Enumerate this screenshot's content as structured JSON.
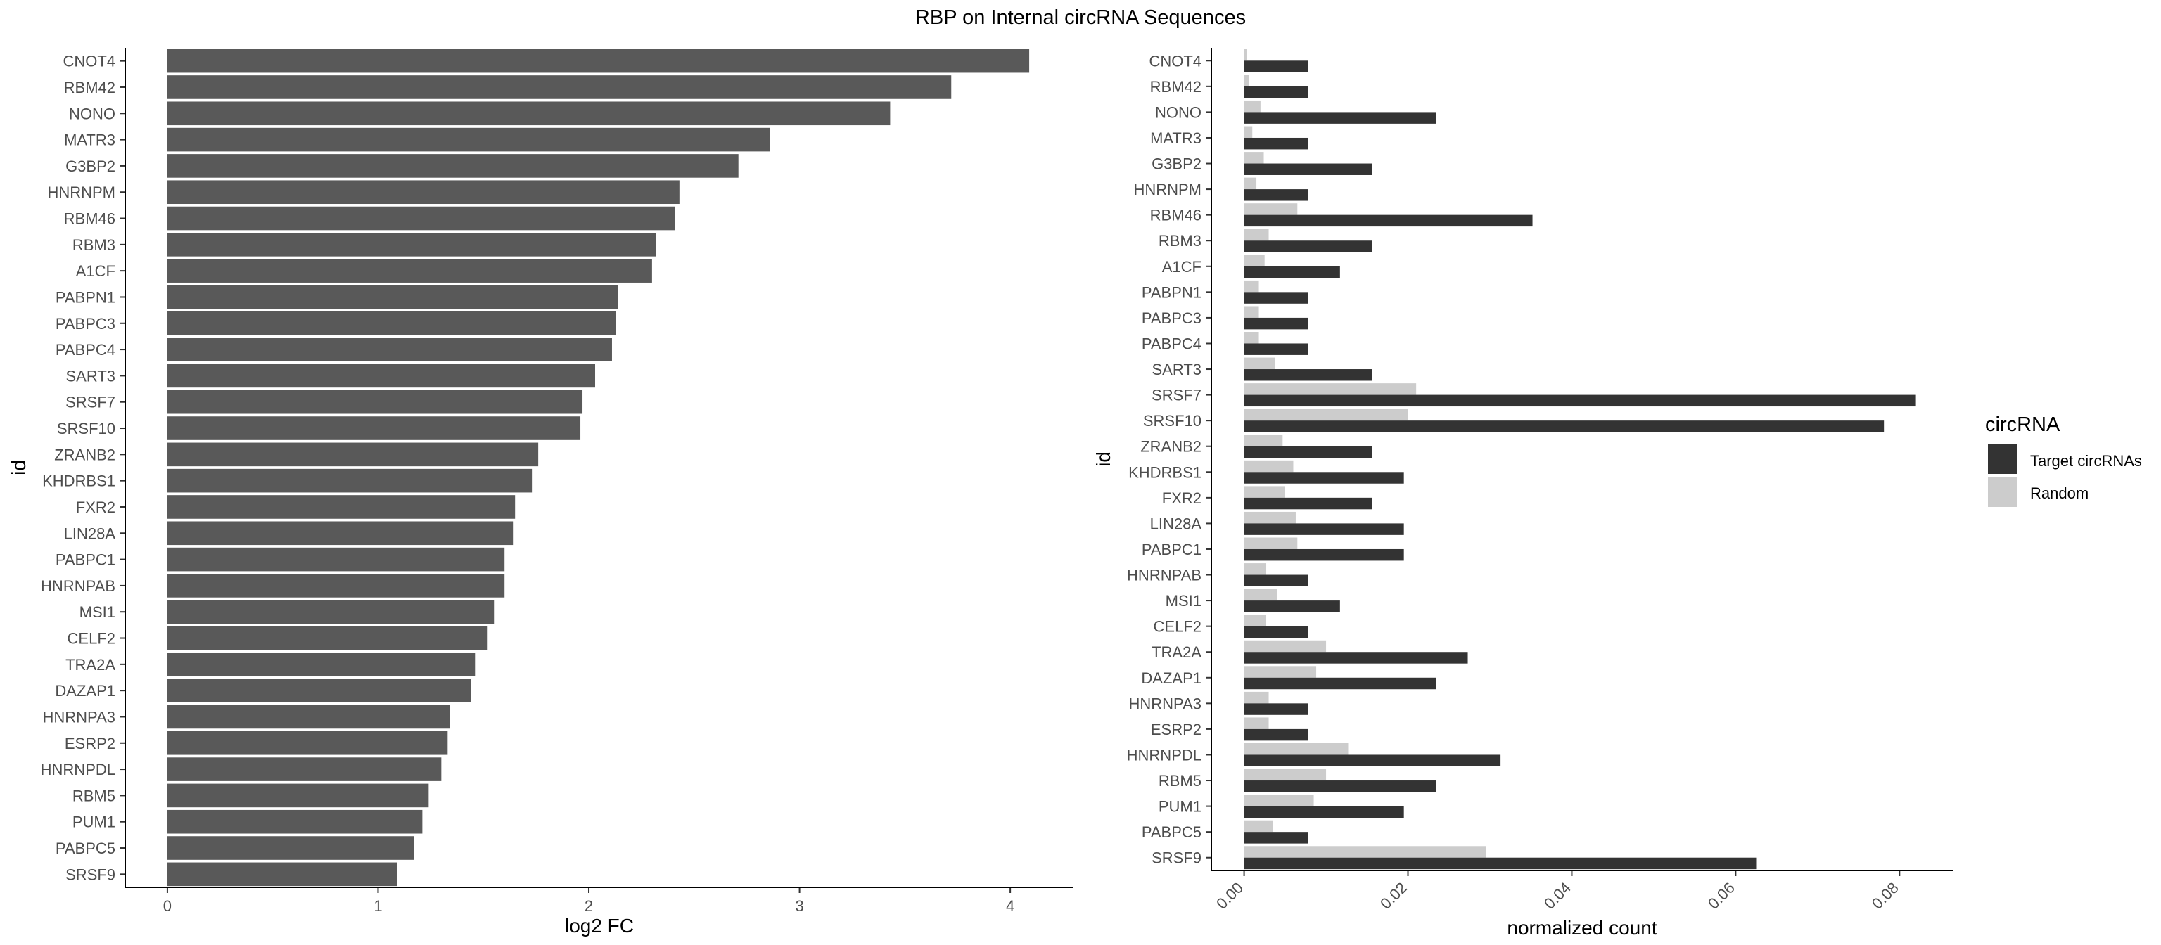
{
  "title": "RBP on Internal circRNA Sequences",
  "chart_data": [
    {
      "type": "bar",
      "orientation": "horizontal",
      "categories": [
        "CNOT4",
        "RBM42",
        "NONO",
        "MATR3",
        "G3BP2",
        "HNRNPM",
        "RBM46",
        "RBM3",
        "A1CF",
        "PABPN1",
        "PABPC3",
        "PABPC4",
        "SART3",
        "SRSF7",
        "SRSF10",
        "ZRANB2",
        "KHDRBS1",
        "FXR2",
        "LIN28A",
        "PABPC1",
        "HNRNPAB",
        "MSI1",
        "CELF2",
        "TRA2A",
        "DAZAP1",
        "HNRNPA3",
        "ESRP2",
        "HNRNPDL",
        "RBM5",
        "PUM1",
        "PABPC5",
        "SRSF9"
      ],
      "values": [
        4.09,
        3.72,
        3.43,
        2.86,
        2.71,
        2.43,
        2.41,
        2.32,
        2.3,
        2.14,
        2.13,
        2.11,
        2.03,
        1.97,
        1.96,
        1.76,
        1.73,
        1.65,
        1.64,
        1.6,
        1.6,
        1.55,
        1.52,
        1.46,
        1.44,
        1.34,
        1.33,
        1.3,
        1.24,
        1.21,
        1.17,
        1.09
      ],
      "xlabel": "log2 FC",
      "ylabel": "id",
      "xlim": [
        -0.2,
        4.3
      ],
      "xticks": [
        "0",
        "1",
        "2",
        "3",
        "4"
      ],
      "bar_color": "#595959",
      "grid": false
    },
    {
      "type": "bar",
      "orientation": "horizontal",
      "grouped": true,
      "categories": [
        "CNOT4",
        "RBM42",
        "NONO",
        "MATR3",
        "G3BP2",
        "HNRNPM",
        "RBM46",
        "RBM3",
        "A1CF",
        "PABPN1",
        "PABPC3",
        "PABPC4",
        "SART3",
        "SRSF7",
        "SRSF10",
        "ZRANB2",
        "KHDRBS1",
        "FXR2",
        "LIN28A",
        "PABPC1",
        "HNRNPAB",
        "MSI1",
        "CELF2",
        "TRA2A",
        "DAZAP1",
        "HNRNPA3",
        "ESRP2",
        "HNRNPDL",
        "RBM5",
        "PUM1",
        "PABPC5",
        "SRSF9"
      ],
      "series": [
        {
          "name": "Target circRNAs",
          "color": "#333333",
          "values": [
            0.0078,
            0.0078,
            0.0234,
            0.0078,
            0.0156,
            0.0078,
            0.0352,
            0.0156,
            0.0117,
            0.0078,
            0.0078,
            0.0078,
            0.0156,
            0.082,
            0.0781,
            0.0156,
            0.0195,
            0.0156,
            0.0195,
            0.0195,
            0.0078,
            0.0117,
            0.0078,
            0.0273,
            0.0234,
            0.0078,
            0.0078,
            0.0313,
            0.0234,
            0.0195,
            0.0078,
            0.0625
          ]
        },
        {
          "name": "Random",
          "color": "#cccccc",
          "values": [
            0.0003,
            0.0006,
            0.002,
            0.001,
            0.0024,
            0.0015,
            0.0065,
            0.003,
            0.0025,
            0.0018,
            0.0018,
            0.0018,
            0.0038,
            0.021,
            0.02,
            0.0047,
            0.006,
            0.005,
            0.0063,
            0.0065,
            0.0027,
            0.004,
            0.0027,
            0.01,
            0.0088,
            0.003,
            0.003,
            0.0127,
            0.01,
            0.0085,
            0.0035,
            0.0295
          ]
        }
      ],
      "xlabel": "normalized count",
      "ylabel": "id",
      "xlim": [
        -0.004,
        0.0865
      ],
      "xticks": [
        "0.00",
        "0.02",
        "0.04",
        "0.06",
        "0.08"
      ],
      "legend": {
        "title": "circRNA",
        "position": "right"
      },
      "grid": false
    }
  ]
}
